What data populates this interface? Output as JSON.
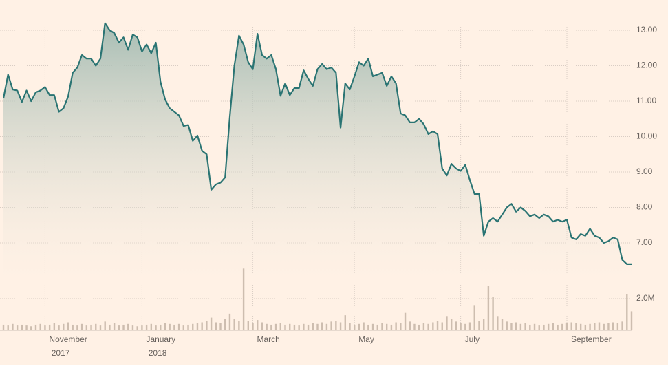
{
  "chart_data": {
    "type": "line",
    "categories": [
      null,
      null,
      null,
      null,
      null,
      null,
      null,
      null,
      null,
      "November 2017",
      null,
      null,
      null,
      null,
      null,
      null,
      null,
      null,
      null,
      null,
      null,
      null,
      null,
      null,
      null,
      null,
      null,
      null,
      null,
      null,
      "January 2018",
      null,
      null,
      null,
      null,
      null,
      null,
      null,
      null,
      null,
      null,
      null,
      null,
      null,
      null,
      null,
      null,
      null,
      null,
      null,
      null,
      null,
      null,
      null,
      "March",
      null,
      null,
      null,
      null,
      null,
      null,
      null,
      null,
      null,
      null,
      null,
      null,
      null,
      null,
      null,
      null,
      null,
      null,
      null,
      null,
      null,
      "May",
      null,
      null,
      null,
      null,
      null,
      null,
      null,
      null,
      null,
      null,
      null,
      null,
      null,
      null,
      null,
      null,
      null,
      null,
      null,
      null,
      null,
      null,
      "July",
      null,
      null,
      null,
      null,
      null,
      null,
      null,
      null,
      null,
      null,
      null,
      null,
      null,
      null,
      null,
      null,
      null,
      null,
      null,
      null,
      null,
      null,
      "September",
      null,
      null,
      null,
      null,
      null,
      null,
      null,
      null,
      null,
      null,
      null,
      null,
      null,
      null
    ],
    "series": [
      {
        "color": "#2a7473",
        "values": [
          11.08,
          11.75,
          11.33,
          11.3,
          10.98,
          11.3,
          11.0,
          11.25,
          11.3,
          11.4,
          11.17,
          11.17,
          10.7,
          10.8,
          11.13,
          11.8,
          11.95,
          12.3,
          12.2,
          12.2,
          12.0,
          12.2,
          13.2,
          13.0,
          12.92,
          12.65,
          12.8,
          12.45,
          12.88,
          12.8,
          12.4,
          12.6,
          12.35,
          12.65,
          11.55,
          11.05,
          10.8,
          10.7,
          10.6,
          10.3,
          10.33,
          9.88,
          10.03,
          9.6,
          9.5,
          8.5,
          8.65,
          8.7,
          8.85,
          10.55,
          12.0,
          12.85,
          12.6,
          12.1,
          11.9,
          12.9,
          12.3,
          12.2,
          12.3,
          11.9,
          11.15,
          11.5,
          11.17,
          11.37,
          11.37,
          11.87,
          11.63,
          11.43,
          11.9,
          12.05,
          11.9,
          11.95,
          11.8,
          10.25,
          11.5,
          11.33,
          11.7,
          12.1,
          12.0,
          12.2,
          11.7,
          11.75,
          11.8,
          11.43,
          11.7,
          11.5,
          10.65,
          10.6,
          10.4,
          10.4,
          10.5,
          10.35,
          10.07,
          10.15,
          10.07,
          9.1,
          8.9,
          9.23,
          9.1,
          9.03,
          9.2,
          8.77,
          8.38,
          8.38,
          7.2,
          7.6,
          7.7,
          7.6,
          7.8,
          8.0,
          8.1,
          7.88,
          8.0,
          7.9,
          7.75,
          7.8,
          7.7,
          7.8,
          7.75,
          7.6,
          7.65,
          7.6,
          7.65,
          7.15,
          7.1,
          7.25,
          7.2,
          7.4,
          7.2,
          7.15,
          7.0,
          7.05,
          7.15,
          7.1,
          6.52,
          6.4,
          6.4
        ]
      },
      {
        "color": "#cdbdaf",
        "axis": "y2",
        "values": [
          0.35,
          0.3,
          0.4,
          0.3,
          0.35,
          0.3,
          0.25,
          0.35,
          0.4,
          0.3,
          0.35,
          0.45,
          0.3,
          0.4,
          0.5,
          0.35,
          0.3,
          0.4,
          0.3,
          0.35,
          0.4,
          0.3,
          0.55,
          0.35,
          0.45,
          0.3,
          0.35,
          0.4,
          0.3,
          0.25,
          0.3,
          0.35,
          0.4,
          0.3,
          0.35,
          0.45,
          0.4,
          0.35,
          0.4,
          0.3,
          0.35,
          0.4,
          0.45,
          0.5,
          0.6,
          0.8,
          0.5,
          0.45,
          0.7,
          1.05,
          0.7,
          0.6,
          3.9,
          0.6,
          0.45,
          0.65,
          0.5,
          0.4,
          0.35,
          0.4,
          0.45,
          0.35,
          0.4,
          0.35,
          0.3,
          0.4,
          0.35,
          0.45,
          0.4,
          0.5,
          0.4,
          0.55,
          0.6,
          0.5,
          0.95,
          0.45,
          0.35,
          0.4,
          0.5,
          0.35,
          0.4,
          0.35,
          0.45,
          0.4,
          0.35,
          0.5,
          0.45,
          1.1,
          0.55,
          0.4,
          0.35,
          0.45,
          0.4,
          0.5,
          0.6,
          0.5,
          0.9,
          0.7,
          0.55,
          0.45,
          0.4,
          0.5,
          1.55,
          0.6,
          0.7,
          2.8,
          2.1,
          0.9,
          0.7,
          0.55,
          0.45,
          0.5,
          0.4,
          0.45,
          0.35,
          0.4,
          0.3,
          0.35,
          0.4,
          0.45,
          0.35,
          0.4,
          0.45,
          0.5,
          0.45,
          0.4,
          0.35,
          0.4,
          0.45,
          0.5,
          0.4,
          0.45,
          0.5,
          0.45,
          0.55,
          2.26,
          1.2
        ]
      }
    ],
    "ylim": [
      6,
      13.3
    ],
    "yticks": [
      {
        "value": 7,
        "label": "7.00"
      },
      {
        "value": 8,
        "label": "8.00"
      },
      {
        "value": 9,
        "label": "9.00"
      },
      {
        "value": 10,
        "label": "10.00"
      },
      {
        "value": 11,
        "label": "11.00"
      },
      {
        "value": 12,
        "label": "12.00"
      },
      {
        "value": 13,
        "label": "13.00"
      }
    ],
    "y2lim": [
      0,
      4
    ],
    "y2ticks": [
      {
        "value": 2,
        "label": "2.0M"
      }
    ],
    "grid": true
  }
}
